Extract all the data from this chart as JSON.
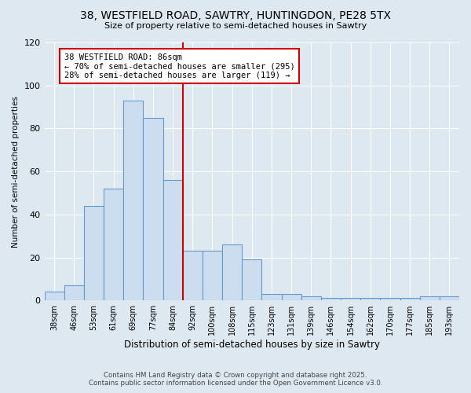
{
  "title1": "38, WESTFIELD ROAD, SAWTRY, HUNTINGDON, PE28 5TX",
  "title2": "Size of property relative to semi-detached houses in Sawtry",
  "xlabel": "Distribution of semi-detached houses by size in Sawtry",
  "ylabel": "Number of semi-detached properties",
  "categories": [
    "38sqm",
    "46sqm",
    "53sqm",
    "61sqm",
    "69sqm",
    "77sqm",
    "84sqm",
    "92sqm",
    "100sqm",
    "108sqm",
    "115sqm",
    "123sqm",
    "131sqm",
    "139sqm",
    "146sqm",
    "154sqm",
    "162sqm",
    "170sqm",
    "177sqm",
    "185sqm",
    "193sqm"
  ],
  "values": [
    4,
    7,
    44,
    52,
    93,
    85,
    56,
    23,
    23,
    26,
    19,
    3,
    3,
    2,
    1,
    1,
    1,
    1,
    1,
    2,
    2
  ],
  "bar_color": "#ccddef",
  "bar_edge_color": "#6699cc",
  "vline_x_index": 6,
  "vline_color": "#cc0000",
  "annotation_text": "38 WESTFIELD ROAD: 86sqm\n← 70% of semi-detached houses are smaller (295)\n28% of semi-detached houses are larger (119) →",
  "annotation_box_color": "#ffffff",
  "annotation_box_edge": "#cc0000",
  "footer1": "Contains HM Land Registry data © Crown copyright and database right 2025.",
  "footer2": "Contains public sector information licensed under the Open Government Licence v3.0.",
  "ylim": [
    0,
    120
  ],
  "bg_color": "#dde8f0",
  "plot_bg_color": "#dde8f0"
}
